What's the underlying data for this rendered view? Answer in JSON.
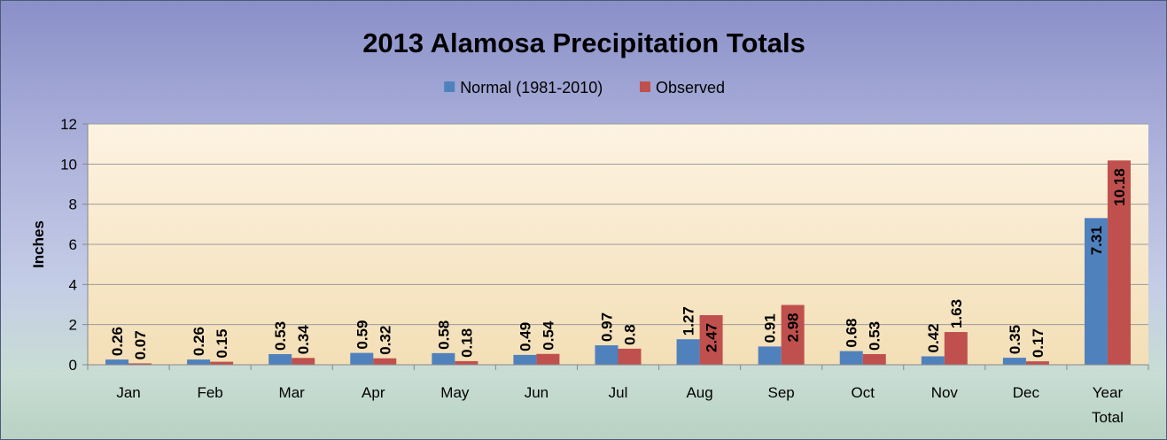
{
  "chart_data": {
    "type": "bar",
    "title": "2013 Alamosa Precipitation Totals",
    "ylabel": "Inches",
    "xlabel": "",
    "ylim": [
      0,
      12
    ],
    "yticks": [
      "0",
      "2",
      "4",
      "6",
      "8",
      "10",
      "12"
    ],
    "grid": true,
    "legend_position": "top-center",
    "categories": [
      [
        "Jan"
      ],
      [
        "Feb"
      ],
      [
        "Mar"
      ],
      [
        "Apr"
      ],
      [
        "May"
      ],
      [
        "Jun"
      ],
      [
        "Jul"
      ],
      [
        "Aug"
      ],
      [
        "Sep"
      ],
      [
        "Oct"
      ],
      [
        "Nov"
      ],
      [
        "Dec"
      ],
      [
        "Year",
        "Total"
      ]
    ],
    "series": [
      {
        "name": "Normal (1981-2010)",
        "color": "#4f81bd",
        "values": [
          0.26,
          0.26,
          0.53,
          0.59,
          0.58,
          0.49,
          0.97,
          1.27,
          0.91,
          0.68,
          0.42,
          0.35,
          7.31
        ],
        "labels": [
          "0.26",
          "0.26",
          "0.53",
          "0.59",
          "0.58",
          "0.49",
          "0.97",
          "1.27",
          "0.91",
          "0.68",
          "0.42",
          "0.35",
          "7.31"
        ]
      },
      {
        "name": "Observed",
        "color": "#c0504d",
        "values": [
          0.07,
          0.15,
          0.34,
          0.32,
          0.18,
          0.54,
          0.8,
          2.47,
          2.98,
          0.53,
          1.63,
          0.17,
          10.18
        ],
        "labels": [
          "0.07",
          "0.15",
          "0.34",
          "0.32",
          "0.18",
          "0.54",
          "0.8",
          "2.47",
          "2.98",
          "0.53",
          "1.63",
          "0.17",
          "10.18"
        ]
      }
    ]
  }
}
